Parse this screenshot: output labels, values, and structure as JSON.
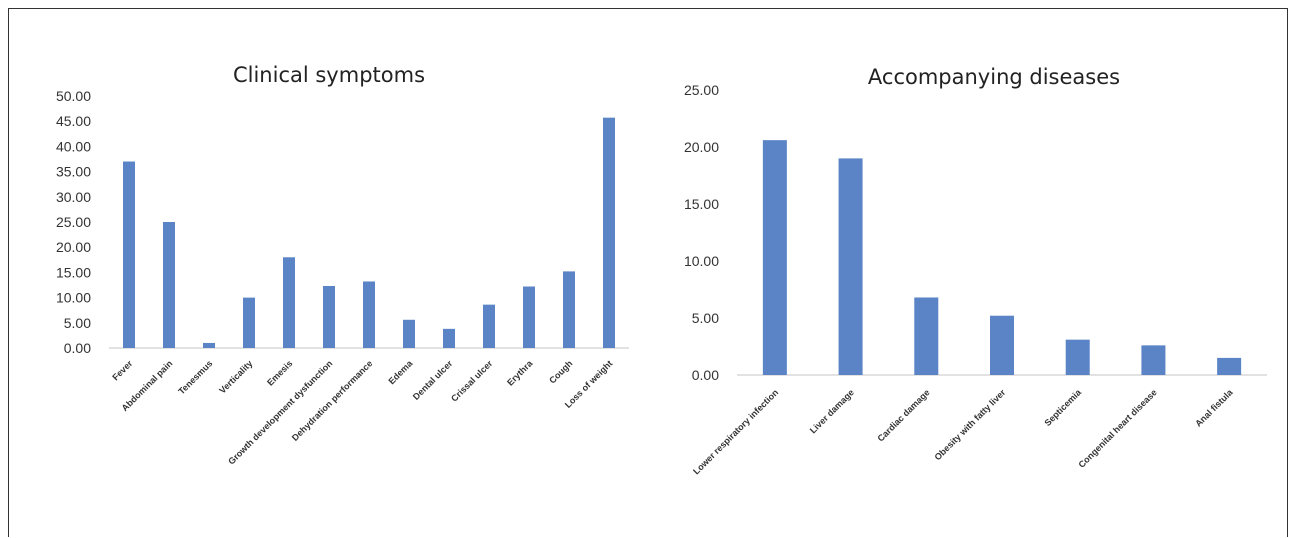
{
  "chart_data": [
    {
      "type": "bar",
      "title": "Clinical symptoms",
      "categories": [
        "Fever",
        "Abdominal pain",
        "Tenesmus",
        "Verticality",
        "Emesis",
        "Growth development dysfunction",
        "Dehydration performance",
        "Edema",
        "Dental ulcer",
        "Crissal ulcer",
        "Erythra",
        "Cough",
        "Loss of weight"
      ],
      "values": [
        37.0,
        25.0,
        1.0,
        10.0,
        18.0,
        12.3,
        13.2,
        5.6,
        3.8,
        8.6,
        12.2,
        15.2,
        45.7
      ],
      "yticks": [
        "0.00",
        "5.00",
        "10.00",
        "15.00",
        "20.00",
        "25.00",
        "30.00",
        "35.00",
        "40.00",
        "45.00",
        "50.00"
      ],
      "ylim": [
        0,
        50
      ],
      "color": "#5a84c6",
      "grid": false
    },
    {
      "type": "bar",
      "title": "Accompanying diseases",
      "categories": [
        "Lower respiratory infection",
        "Liver damage",
        "Cardiac damage",
        "Obesity with fatty liver",
        "Septicemia",
        "Congenital heart disease",
        "Anal fistula"
      ],
      "values": [
        20.6,
        19.0,
        6.8,
        5.2,
        3.1,
        2.6,
        1.5
      ],
      "yticks": [
        "0.00",
        "5.00",
        "10.00",
        "15.00",
        "20.00",
        "25.00"
      ],
      "ylim": [
        0,
        25
      ],
      "color": "#5a84c6",
      "grid": false
    }
  ]
}
